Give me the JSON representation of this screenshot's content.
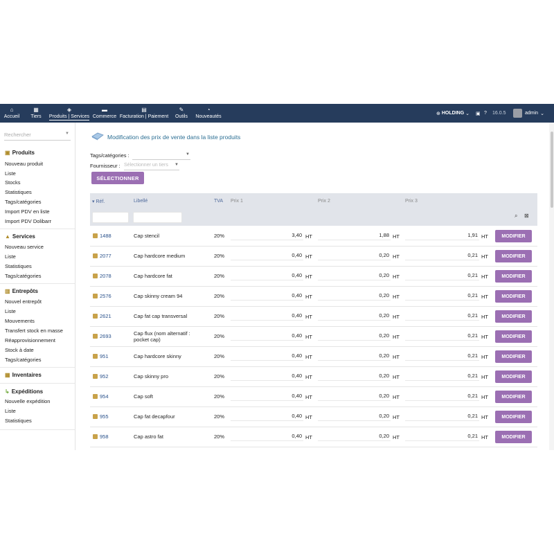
{
  "topbar": {
    "nav": [
      {
        "icon": "home-icon",
        "glyph": "⌂",
        "label": "Accueil"
      },
      {
        "icon": "building-icon",
        "glyph": "▦",
        "label": "Tiers"
      },
      {
        "icon": "cube-icon",
        "glyph": "◈",
        "label": "Produits | Services"
      },
      {
        "icon": "briefcase-icon",
        "glyph": "▬",
        "label": "Commerce"
      },
      {
        "icon": "money-icon",
        "glyph": "▤",
        "label": "Facturation | Paiement"
      },
      {
        "icon": "wrench-icon",
        "glyph": "✎",
        "label": "Outils"
      },
      {
        "icon": "gauge-icon",
        "glyph": "◔",
        "label": "Nouveautés"
      }
    ],
    "entity": "HOLDING",
    "version": "16.0.5",
    "user": "admin"
  },
  "sidebar": {
    "search_placeholder": "Rechercher",
    "sections": [
      {
        "title": "Produits",
        "icon": "cube-icon",
        "links": [
          "Nouveau produit",
          "Liste",
          "Stocks",
          "Statistiques",
          "Tags/catégories",
          "Import PDV en liste",
          "Import PDV Dolibarr"
        ]
      },
      {
        "title": "Services",
        "icon": "service-icon",
        "links": [
          "Nouveau service",
          "Liste",
          "Statistiques",
          "Tags/catégories"
        ]
      },
      {
        "title": "Entrepôts",
        "icon": "warehouse-icon",
        "links": [
          "Nouvel entrepôt",
          "Liste",
          "Mouvements",
          "Transfert stock en masse",
          "Réapprovisionnement",
          "Stock à date",
          "Tags/catégories"
        ]
      },
      {
        "title": "Inventaires",
        "icon": "boxes-icon",
        "links": []
      },
      {
        "title": "Expéditions",
        "icon": "dolly-icon",
        "links": [
          "Nouvelle expédition",
          "Liste",
          "Statistiques"
        ]
      }
    ]
  },
  "main": {
    "title": "Modification des prix de vente dans la liste produits",
    "filters": {
      "tags_label": "Tags/catégories :",
      "supplier_label": "Fournisseur :",
      "supplier_placeholder": "Sélectionner un tiers"
    },
    "select_button": "SÉLECTIONNER",
    "table": {
      "headers": {
        "ref": "Réf.",
        "label": "Libellé",
        "tva": "TVA",
        "p1": "Prix 1",
        "p2": "Prix 2",
        "p3": "Prix 3"
      },
      "ht": "HT",
      "modify": "MODIFIER",
      "rows": [
        {
          "ref": "1488",
          "label": "Cap stencil",
          "tva": "20%",
          "p1": "3,40",
          "p2": "1,88",
          "p3": "1,91"
        },
        {
          "ref": "2077",
          "label": "Cap hardcore medium",
          "tva": "20%",
          "p1": "0,40",
          "p2": "0,20",
          "p3": "0,21"
        },
        {
          "ref": "2078",
          "label": "Cap hardcore fat",
          "tva": "20%",
          "p1": "0,40",
          "p2": "0,20",
          "p3": "0,21"
        },
        {
          "ref": "2576",
          "label": "Cap skinny cream 94",
          "tva": "20%",
          "p1": "0,40",
          "p2": "0,20",
          "p3": "0,21"
        },
        {
          "ref": "2621",
          "label": "Cap fat cap transversal",
          "tva": "20%",
          "p1": "0,40",
          "p2": "0,20",
          "p3": "0,21"
        },
        {
          "ref": "2693",
          "label": "Cap flux (nom alternatif : pocket cap)",
          "tva": "20%",
          "p1": "0,40",
          "p2": "0,20",
          "p3": "0,21"
        },
        {
          "ref": "951",
          "label": "Cap hardcore skinny",
          "tva": "20%",
          "p1": "0,40",
          "p2": "0,20",
          "p3": "0,21"
        },
        {
          "ref": "952",
          "label": "Cap skinny pro",
          "tva": "20%",
          "p1": "0,40",
          "p2": "0,20",
          "p3": "0,21"
        },
        {
          "ref": "954",
          "label": "Cap soft",
          "tva": "20%",
          "p1": "0,40",
          "p2": "0,20",
          "p3": "0,21"
        },
        {
          "ref": "955",
          "label": "Cap fat decapfour",
          "tva": "20%",
          "p1": "0,40",
          "p2": "0,20",
          "p3": "0,21"
        },
        {
          "ref": "958",
          "label": "Cap astro fat",
          "tva": "20%",
          "p1": "0,40",
          "p2": "0,20",
          "p3": "0,21"
        }
      ]
    }
  },
  "colors": {
    "topbar": "#263c5c",
    "accent": "#9b6fb3",
    "link": "#274f8a",
    "title": "#2b6e93"
  }
}
